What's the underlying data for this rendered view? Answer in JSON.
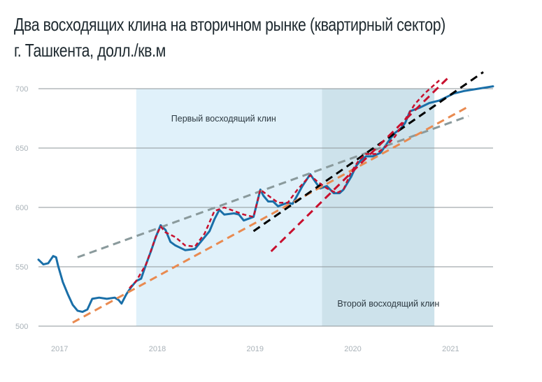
{
  "title_line1": "Два восходящих клина на вторичном рынке (квартирный сектор)",
  "title_line2": "г. Ташкента, долл./кв.м",
  "chart_data": {
    "type": "line",
    "title": "Два восходящих клина на вторичном рынке (квартирный сектор) г. Ташкента, долл./кв.м",
    "xlabel": "",
    "ylabel": "долл./кв.м",
    "ylim": [
      500,
      700
    ],
    "xlim": [
      2016.8,
      2021.45
    ],
    "yticks": [
      500,
      550,
      600,
      650,
      700
    ],
    "xticks": [
      {
        "value": 2017,
        "label": "2017"
      },
      {
        "value": 2018,
        "label": "2018"
      },
      {
        "value": 2019,
        "label": "2019"
      },
      {
        "value": 2020,
        "label": "2020"
      },
      {
        "value": 2021,
        "label": "2021"
      }
    ],
    "grid": true,
    "shaded_regions": [
      {
        "name": "first-wedge",
        "x0": 2017.8,
        "x1": 2019.7,
        "color": "#e0f1fa",
        "label": "Первый восходящий клин"
      },
      {
        "name": "second-wedge",
        "x0": 2019.7,
        "x1": 2020.85,
        "color": "#cde2eb",
        "label": "Второй восходящий клин"
      }
    ],
    "series": [
      {
        "name": "price",
        "color": "#1a6fa8",
        "points": [
          [
            2016.8,
            556
          ],
          [
            2016.85,
            552
          ],
          [
            2016.9,
            553
          ],
          [
            2016.95,
            559
          ],
          [
            2016.98,
            558
          ],
          [
            2017.0,
            551
          ],
          [
            2017.05,
            537
          ],
          [
            2017.1,
            527
          ],
          [
            2017.15,
            518
          ],
          [
            2017.2,
            513
          ],
          [
            2017.25,
            512
          ],
          [
            2017.3,
            514
          ],
          [
            2017.35,
            523
          ],
          [
            2017.42,
            524
          ],
          [
            2017.5,
            523
          ],
          [
            2017.58,
            524
          ],
          [
            2017.62,
            522
          ],
          [
            2017.65,
            519
          ],
          [
            2017.7,
            527
          ],
          [
            2017.75,
            533
          ],
          [
            2017.8,
            538
          ],
          [
            2017.85,
            540
          ],
          [
            2017.9,
            552
          ],
          [
            2017.95,
            563
          ],
          [
            2018.0,
            575
          ],
          [
            2018.05,
            585
          ],
          [
            2018.1,
            581
          ],
          [
            2018.15,
            571
          ],
          [
            2018.2,
            568
          ],
          [
            2018.3,
            564
          ],
          [
            2018.4,
            565
          ],
          [
            2018.5,
            575
          ],
          [
            2018.55,
            580
          ],
          [
            2018.6,
            590
          ],
          [
            2018.65,
            598
          ],
          [
            2018.7,
            594
          ],
          [
            2018.8,
            595
          ],
          [
            2018.85,
            594
          ],
          [
            2018.9,
            589
          ],
          [
            2019.0,
            592
          ],
          [
            2019.07,
            615
          ],
          [
            2019.1,
            610
          ],
          [
            2019.15,
            605
          ],
          [
            2019.2,
            605
          ],
          [
            2019.25,
            601
          ],
          [
            2019.35,
            604
          ],
          [
            2019.4,
            603
          ],
          [
            2019.5,
            618
          ],
          [
            2019.58,
            628
          ],
          [
            2019.62,
            623
          ],
          [
            2019.68,
            616
          ],
          [
            2019.75,
            618
          ],
          [
            2019.82,
            612
          ],
          [
            2019.88,
            612
          ],
          [
            2019.92,
            615
          ],
          [
            2020.0,
            626
          ],
          [
            2020.05,
            635
          ],
          [
            2020.1,
            640
          ],
          [
            2020.15,
            643
          ],
          [
            2020.22,
            643
          ],
          [
            2020.3,
            646
          ],
          [
            2020.35,
            652
          ],
          [
            2020.4,
            658
          ],
          [
            2020.45,
            663
          ],
          [
            2020.5,
            666
          ],
          [
            2020.55,
            671
          ],
          [
            2020.6,
            681
          ],
          [
            2020.7,
            684
          ],
          [
            2020.8,
            688
          ],
          [
            2020.9,
            690
          ],
          [
            2021.0,
            694
          ],
          [
            2021.05,
            696
          ],
          [
            2021.15,
            698
          ],
          [
            2021.3,
            700
          ],
          [
            2021.45,
            702
          ]
        ]
      },
      {
        "name": "red-dotted-tops",
        "color": "#c8102e",
        "dash": "dotted",
        "points": [
          [
            2017.73,
            532
          ],
          [
            2017.8,
            538
          ],
          [
            2017.9,
            552
          ],
          [
            2018.0,
            575
          ],
          [
            2018.05,
            584
          ],
          [
            2018.1,
            579
          ],
          [
            2018.2,
            575
          ],
          [
            2018.3,
            568
          ],
          [
            2018.4,
            567
          ],
          [
            2018.5,
            578
          ],
          [
            2018.6,
            597
          ],
          [
            2018.7,
            600
          ],
          [
            2018.8,
            597
          ],
          [
            2018.9,
            594
          ],
          [
            2019.0,
            592
          ],
          [
            2019.07,
            615
          ],
          [
            2019.15,
            610
          ],
          [
            2019.25,
            604
          ],
          [
            2019.35,
            604
          ],
          [
            2019.45,
            615
          ],
          [
            2019.58,
            627
          ],
          [
            2019.65,
            622
          ],
          [
            2019.75,
            616
          ],
          [
            2019.85,
            612
          ],
          [
            2019.92,
            615
          ],
          [
            2020.0,
            630
          ],
          [
            2020.08,
            640
          ],
          [
            2020.15,
            645
          ],
          [
            2020.25,
            645
          ],
          [
            2020.35,
            651
          ],
          [
            2020.45,
            660
          ],
          [
            2020.55,
            674
          ],
          [
            2020.65,
            687
          ],
          [
            2020.75,
            696
          ],
          [
            2020.9,
            707
          ]
        ]
      }
    ],
    "trendlines": [
      {
        "name": "gray-upper-1",
        "color": "#8a9a9c",
        "from": [
          2017.2,
          558
        ],
        "to": [
          2021.2,
          677
        ]
      },
      {
        "name": "orange-lower-1",
        "color": "#e98a50",
        "from": [
          2017.15,
          503
        ],
        "to": [
          2021.2,
          685
        ]
      },
      {
        "name": "black-upper-2",
        "color": "#000000",
        "from": [
          2019.0,
          580
        ],
        "to": [
          2021.35,
          714
        ]
      },
      {
        "name": "red-lower-2",
        "color": "#c8102e",
        "from": [
          2019.18,
          563
        ],
        "to": [
          2021.0,
          710
        ]
      }
    ]
  }
}
